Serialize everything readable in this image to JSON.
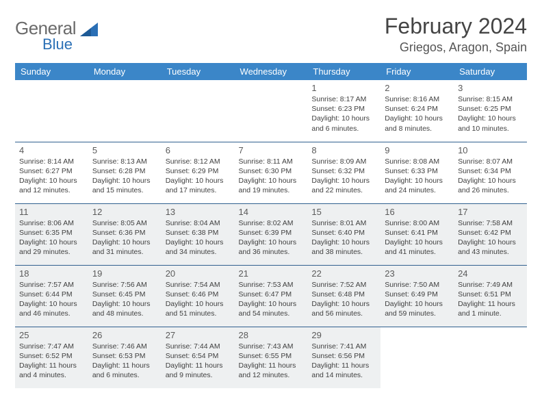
{
  "brand": {
    "line1": "General",
    "line2": "Blue",
    "color_text": "#6a6a6a",
    "color_accent": "#2a6fb5"
  },
  "title": "February 2024",
  "location": "Griegos, Aragon, Spain",
  "colors": {
    "header_bg": "#3b86c8",
    "header_text": "#ffffff",
    "row_border": "#2f5f8e",
    "shaded_bg": "#eef0f1",
    "body_text": "#404040"
  },
  "weekdays": [
    "Sunday",
    "Monday",
    "Tuesday",
    "Wednesday",
    "Thursday",
    "Friday",
    "Saturday"
  ],
  "weeks": [
    [
      {
        "empty": true
      },
      {
        "empty": true
      },
      {
        "empty": true
      },
      {
        "empty": true
      },
      {
        "day": "1",
        "sunrise": "Sunrise: 8:17 AM",
        "sunset": "Sunset: 6:23 PM",
        "daylight1": "Daylight: 10 hours",
        "daylight2": "and 6 minutes."
      },
      {
        "day": "2",
        "sunrise": "Sunrise: 8:16 AM",
        "sunset": "Sunset: 6:24 PM",
        "daylight1": "Daylight: 10 hours",
        "daylight2": "and 8 minutes."
      },
      {
        "day": "3",
        "sunrise": "Sunrise: 8:15 AM",
        "sunset": "Sunset: 6:25 PM",
        "daylight1": "Daylight: 10 hours",
        "daylight2": "and 10 minutes."
      }
    ],
    [
      {
        "day": "4",
        "sunrise": "Sunrise: 8:14 AM",
        "sunset": "Sunset: 6:27 PM",
        "daylight1": "Daylight: 10 hours",
        "daylight2": "and 12 minutes."
      },
      {
        "day": "5",
        "sunrise": "Sunrise: 8:13 AM",
        "sunset": "Sunset: 6:28 PM",
        "daylight1": "Daylight: 10 hours",
        "daylight2": "and 15 minutes."
      },
      {
        "day": "6",
        "sunrise": "Sunrise: 8:12 AM",
        "sunset": "Sunset: 6:29 PM",
        "daylight1": "Daylight: 10 hours",
        "daylight2": "and 17 minutes."
      },
      {
        "day": "7",
        "sunrise": "Sunrise: 8:11 AM",
        "sunset": "Sunset: 6:30 PM",
        "daylight1": "Daylight: 10 hours",
        "daylight2": "and 19 minutes."
      },
      {
        "day": "8",
        "sunrise": "Sunrise: 8:09 AM",
        "sunset": "Sunset: 6:32 PM",
        "daylight1": "Daylight: 10 hours",
        "daylight2": "and 22 minutes."
      },
      {
        "day": "9",
        "sunrise": "Sunrise: 8:08 AM",
        "sunset": "Sunset: 6:33 PM",
        "daylight1": "Daylight: 10 hours",
        "daylight2": "and 24 minutes."
      },
      {
        "day": "10",
        "sunrise": "Sunrise: 8:07 AM",
        "sunset": "Sunset: 6:34 PM",
        "daylight1": "Daylight: 10 hours",
        "daylight2": "and 26 minutes."
      }
    ],
    [
      {
        "day": "11",
        "sunrise": "Sunrise: 8:06 AM",
        "sunset": "Sunset: 6:35 PM",
        "daylight1": "Daylight: 10 hours",
        "daylight2": "and 29 minutes.",
        "shaded": true
      },
      {
        "day": "12",
        "sunrise": "Sunrise: 8:05 AM",
        "sunset": "Sunset: 6:36 PM",
        "daylight1": "Daylight: 10 hours",
        "daylight2": "and 31 minutes.",
        "shaded": true
      },
      {
        "day": "13",
        "sunrise": "Sunrise: 8:04 AM",
        "sunset": "Sunset: 6:38 PM",
        "daylight1": "Daylight: 10 hours",
        "daylight2": "and 34 minutes.",
        "shaded": true
      },
      {
        "day": "14",
        "sunrise": "Sunrise: 8:02 AM",
        "sunset": "Sunset: 6:39 PM",
        "daylight1": "Daylight: 10 hours",
        "daylight2": "and 36 minutes.",
        "shaded": true
      },
      {
        "day": "15",
        "sunrise": "Sunrise: 8:01 AM",
        "sunset": "Sunset: 6:40 PM",
        "daylight1": "Daylight: 10 hours",
        "daylight2": "and 38 minutes.",
        "shaded": true
      },
      {
        "day": "16",
        "sunrise": "Sunrise: 8:00 AM",
        "sunset": "Sunset: 6:41 PM",
        "daylight1": "Daylight: 10 hours",
        "daylight2": "and 41 minutes.",
        "shaded": true
      },
      {
        "day": "17",
        "sunrise": "Sunrise: 7:58 AM",
        "sunset": "Sunset: 6:42 PM",
        "daylight1": "Daylight: 10 hours",
        "daylight2": "and 43 minutes.",
        "shaded": true
      }
    ],
    [
      {
        "day": "18",
        "sunrise": "Sunrise: 7:57 AM",
        "sunset": "Sunset: 6:44 PM",
        "daylight1": "Daylight: 10 hours",
        "daylight2": "and 46 minutes.",
        "shaded": true
      },
      {
        "day": "19",
        "sunrise": "Sunrise: 7:56 AM",
        "sunset": "Sunset: 6:45 PM",
        "daylight1": "Daylight: 10 hours",
        "daylight2": "and 48 minutes.",
        "shaded": true
      },
      {
        "day": "20",
        "sunrise": "Sunrise: 7:54 AM",
        "sunset": "Sunset: 6:46 PM",
        "daylight1": "Daylight: 10 hours",
        "daylight2": "and 51 minutes.",
        "shaded": true
      },
      {
        "day": "21",
        "sunrise": "Sunrise: 7:53 AM",
        "sunset": "Sunset: 6:47 PM",
        "daylight1": "Daylight: 10 hours",
        "daylight2": "and 54 minutes.",
        "shaded": true
      },
      {
        "day": "22",
        "sunrise": "Sunrise: 7:52 AM",
        "sunset": "Sunset: 6:48 PM",
        "daylight1": "Daylight: 10 hours",
        "daylight2": "and 56 minutes.",
        "shaded": true
      },
      {
        "day": "23",
        "sunrise": "Sunrise: 7:50 AM",
        "sunset": "Sunset: 6:49 PM",
        "daylight1": "Daylight: 10 hours",
        "daylight2": "and 59 minutes.",
        "shaded": true
      },
      {
        "day": "24",
        "sunrise": "Sunrise: 7:49 AM",
        "sunset": "Sunset: 6:51 PM",
        "daylight1": "Daylight: 11 hours",
        "daylight2": "and 1 minute.",
        "shaded": true
      }
    ],
    [
      {
        "day": "25",
        "sunrise": "Sunrise: 7:47 AM",
        "sunset": "Sunset: 6:52 PM",
        "daylight1": "Daylight: 11 hours",
        "daylight2": "and 4 minutes.",
        "shaded": true
      },
      {
        "day": "26",
        "sunrise": "Sunrise: 7:46 AM",
        "sunset": "Sunset: 6:53 PM",
        "daylight1": "Daylight: 11 hours",
        "daylight2": "and 6 minutes.",
        "shaded": true
      },
      {
        "day": "27",
        "sunrise": "Sunrise: 7:44 AM",
        "sunset": "Sunset: 6:54 PM",
        "daylight1": "Daylight: 11 hours",
        "daylight2": "and 9 minutes.",
        "shaded": true
      },
      {
        "day": "28",
        "sunrise": "Sunrise: 7:43 AM",
        "sunset": "Sunset: 6:55 PM",
        "daylight1": "Daylight: 11 hours",
        "daylight2": "and 12 minutes.",
        "shaded": true
      },
      {
        "day": "29",
        "sunrise": "Sunrise: 7:41 AM",
        "sunset": "Sunset: 6:56 PM",
        "daylight1": "Daylight: 11 hours",
        "daylight2": "and 14 minutes.",
        "shaded": true
      },
      {
        "empty": true
      },
      {
        "empty": true
      }
    ]
  ]
}
